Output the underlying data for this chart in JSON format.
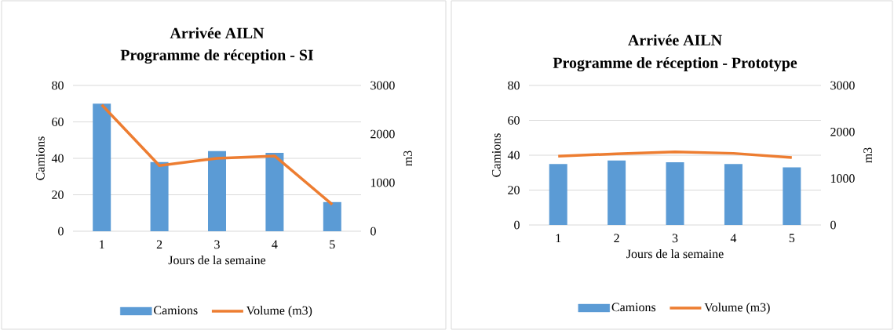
{
  "chart_data": [
    {
      "type": "bar",
      "title": "Arrivée AILN",
      "subtitle": "Programme de réception - SI",
      "xlabel": "Jours de la semaine",
      "ylabel": "Camions",
      "y2label": "m3",
      "categories": [
        "1",
        "2",
        "3",
        "4",
        "5"
      ],
      "series": [
        {
          "name": "Camions",
          "color": "#5b9bd5",
          "values": [
            70,
            38,
            44,
            43,
            16
          ]
        },
        {
          "name": "Volume (m3)",
          "type": "line",
          "axis": "y2",
          "color": "#ed7d31",
          "values": [
            2600,
            1350,
            1500,
            1550,
            550
          ]
        }
      ],
      "ylim": [
        0,
        80
      ],
      "yticks": [
        0,
        20,
        40,
        60,
        80
      ],
      "y2lim": [
        0,
        3000
      ],
      "y2ticks": [
        0,
        1000,
        2000,
        3000
      ],
      "grid": "y",
      "legend": "bottom"
    },
    {
      "type": "bar",
      "title": "Arrivée AILN",
      "subtitle": "Programme de réception - Prototype",
      "xlabel": "Jours de la semaine",
      "ylabel": "Camions",
      "y2label": "m3",
      "categories": [
        "1",
        "2",
        "3",
        "4",
        "5"
      ],
      "series": [
        {
          "name": "Camions",
          "color": "#5b9bd5",
          "values": [
            35,
            37,
            36,
            35,
            33
          ]
        },
        {
          "name": "Volume (m3)",
          "type": "line",
          "axis": "y2",
          "color": "#ed7d31",
          "values": [
            1480,
            1530,
            1570,
            1540,
            1450
          ]
        }
      ],
      "ylim": [
        0,
        80
      ],
      "yticks": [
        0,
        20,
        40,
        60,
        80
      ],
      "y2lim": [
        0,
        3000
      ],
      "y2ticks": [
        0,
        1000,
        2000,
        3000
      ],
      "grid": "y",
      "legend": "bottom"
    }
  ]
}
